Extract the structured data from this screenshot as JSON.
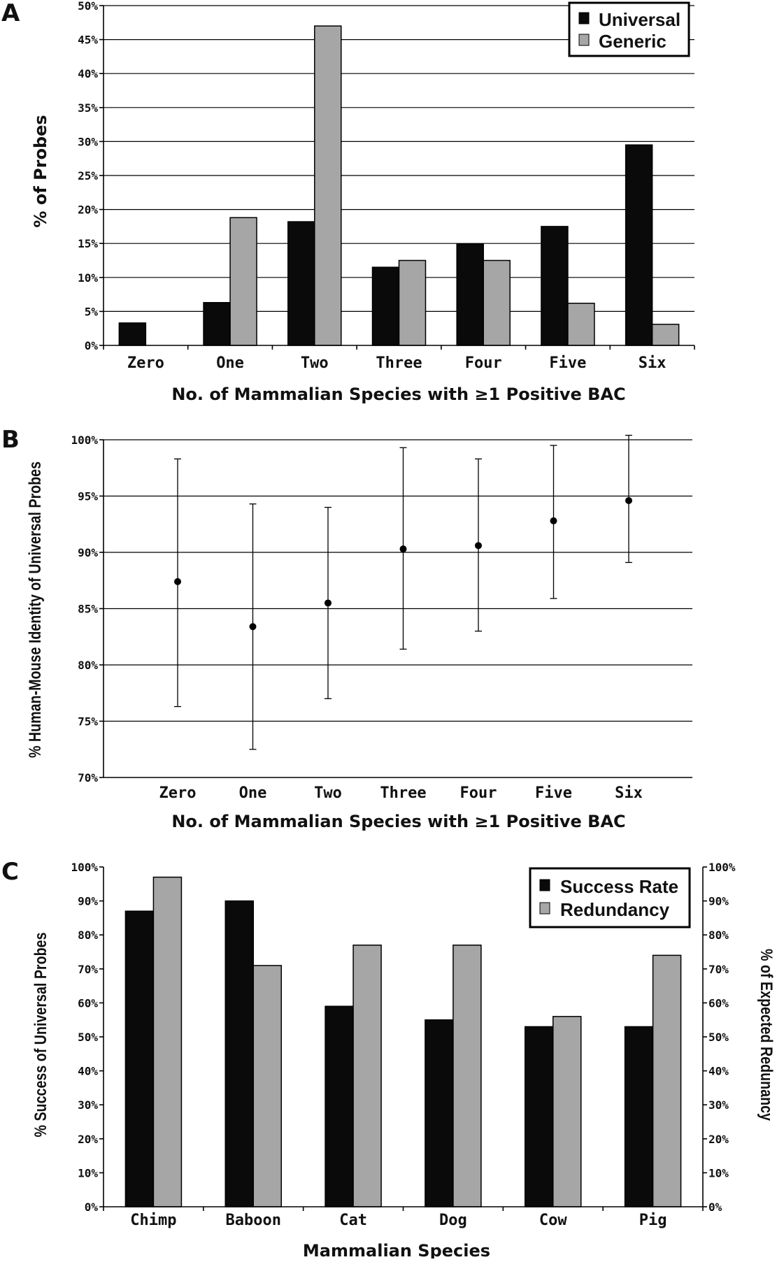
{
  "chart_data": [
    {
      "panel": "A",
      "type": "bar",
      "categories": [
        "Zero",
        "One",
        "Two",
        "Three",
        "Four",
        "Five",
        "Six"
      ],
      "series": [
        {
          "name": "Universal",
          "values": [
            3.3,
            6.3,
            18.2,
            11.5,
            14.9,
            17.5,
            29.5
          ],
          "color": "#0a0a0a"
        },
        {
          "name": "Generic",
          "values": [
            0,
            18.8,
            47.0,
            12.5,
            12.5,
            6.2,
            3.1
          ],
          "color": "#a6a6a6"
        }
      ],
      "xlabel": "No. of Mammalian Species with ≥1 Positive BAC",
      "ylabel": "% of Probes",
      "ylim": [
        0,
        50
      ],
      "yticks": [
        "0%",
        "5%",
        "10%",
        "15%",
        "20%",
        "25%",
        "30%",
        "35%",
        "40%",
        "45%",
        "50%"
      ],
      "grid": true,
      "legend": "top-right"
    },
    {
      "panel": "B",
      "type": "scatter",
      "categories": [
        "Zero",
        "One",
        "Two",
        "Three",
        "Four",
        "Five",
        "Six"
      ],
      "values": [
        87.4,
        83.4,
        85.5,
        90.3,
        90.6,
        92.8,
        94.6
      ],
      "error_low": [
        76.3,
        72.5,
        77.0,
        81.4,
        83.0,
        85.9,
        89.1
      ],
      "error_high": [
        98.3,
        94.3,
        94.0,
        99.3,
        98.3,
        99.5,
        100.4
      ],
      "xlabel": "No. of Mammalian Species with ≥1 Positive BAC",
      "ylabel": "% Human-Mouse Identity of Universal Probes",
      "ylim": [
        70,
        100
      ],
      "yticks": [
        "70%",
        "75%",
        "80%",
        "85%",
        "90%",
        "95%",
        "100%"
      ],
      "grid": true
    },
    {
      "panel": "C",
      "type": "bar",
      "categories": [
        "Chimp",
        "Baboon",
        "Cat",
        "Dog",
        "Cow",
        "Pig"
      ],
      "series": [
        {
          "name": "Success Rate",
          "values": [
            87,
            90,
            59,
            55,
            53,
            53
          ],
          "color": "#0a0a0a"
        },
        {
          "name": "Redundancy",
          "values": [
            97,
            71,
            77,
            77,
            56,
            74
          ],
          "color": "#a6a6a6"
        }
      ],
      "xlabel": "Mammalian Species",
      "ylabel": "% Success of Universal Probes",
      "ylabel_right": "% of Expected Redunancy",
      "ylim": [
        0,
        100
      ],
      "yticks": [
        "0%",
        "10%",
        "20%",
        "30%",
        "40%",
        "50%",
        "60%",
        "70%",
        "80%",
        "90%",
        "100%"
      ],
      "yticks_right": [
        "0%",
        "10%",
        "20%",
        "30%",
        "40%",
        "50%",
        "60%",
        "70%",
        "80%",
        "90%",
        "100%"
      ],
      "grid": false,
      "legend": "top-right"
    }
  ]
}
